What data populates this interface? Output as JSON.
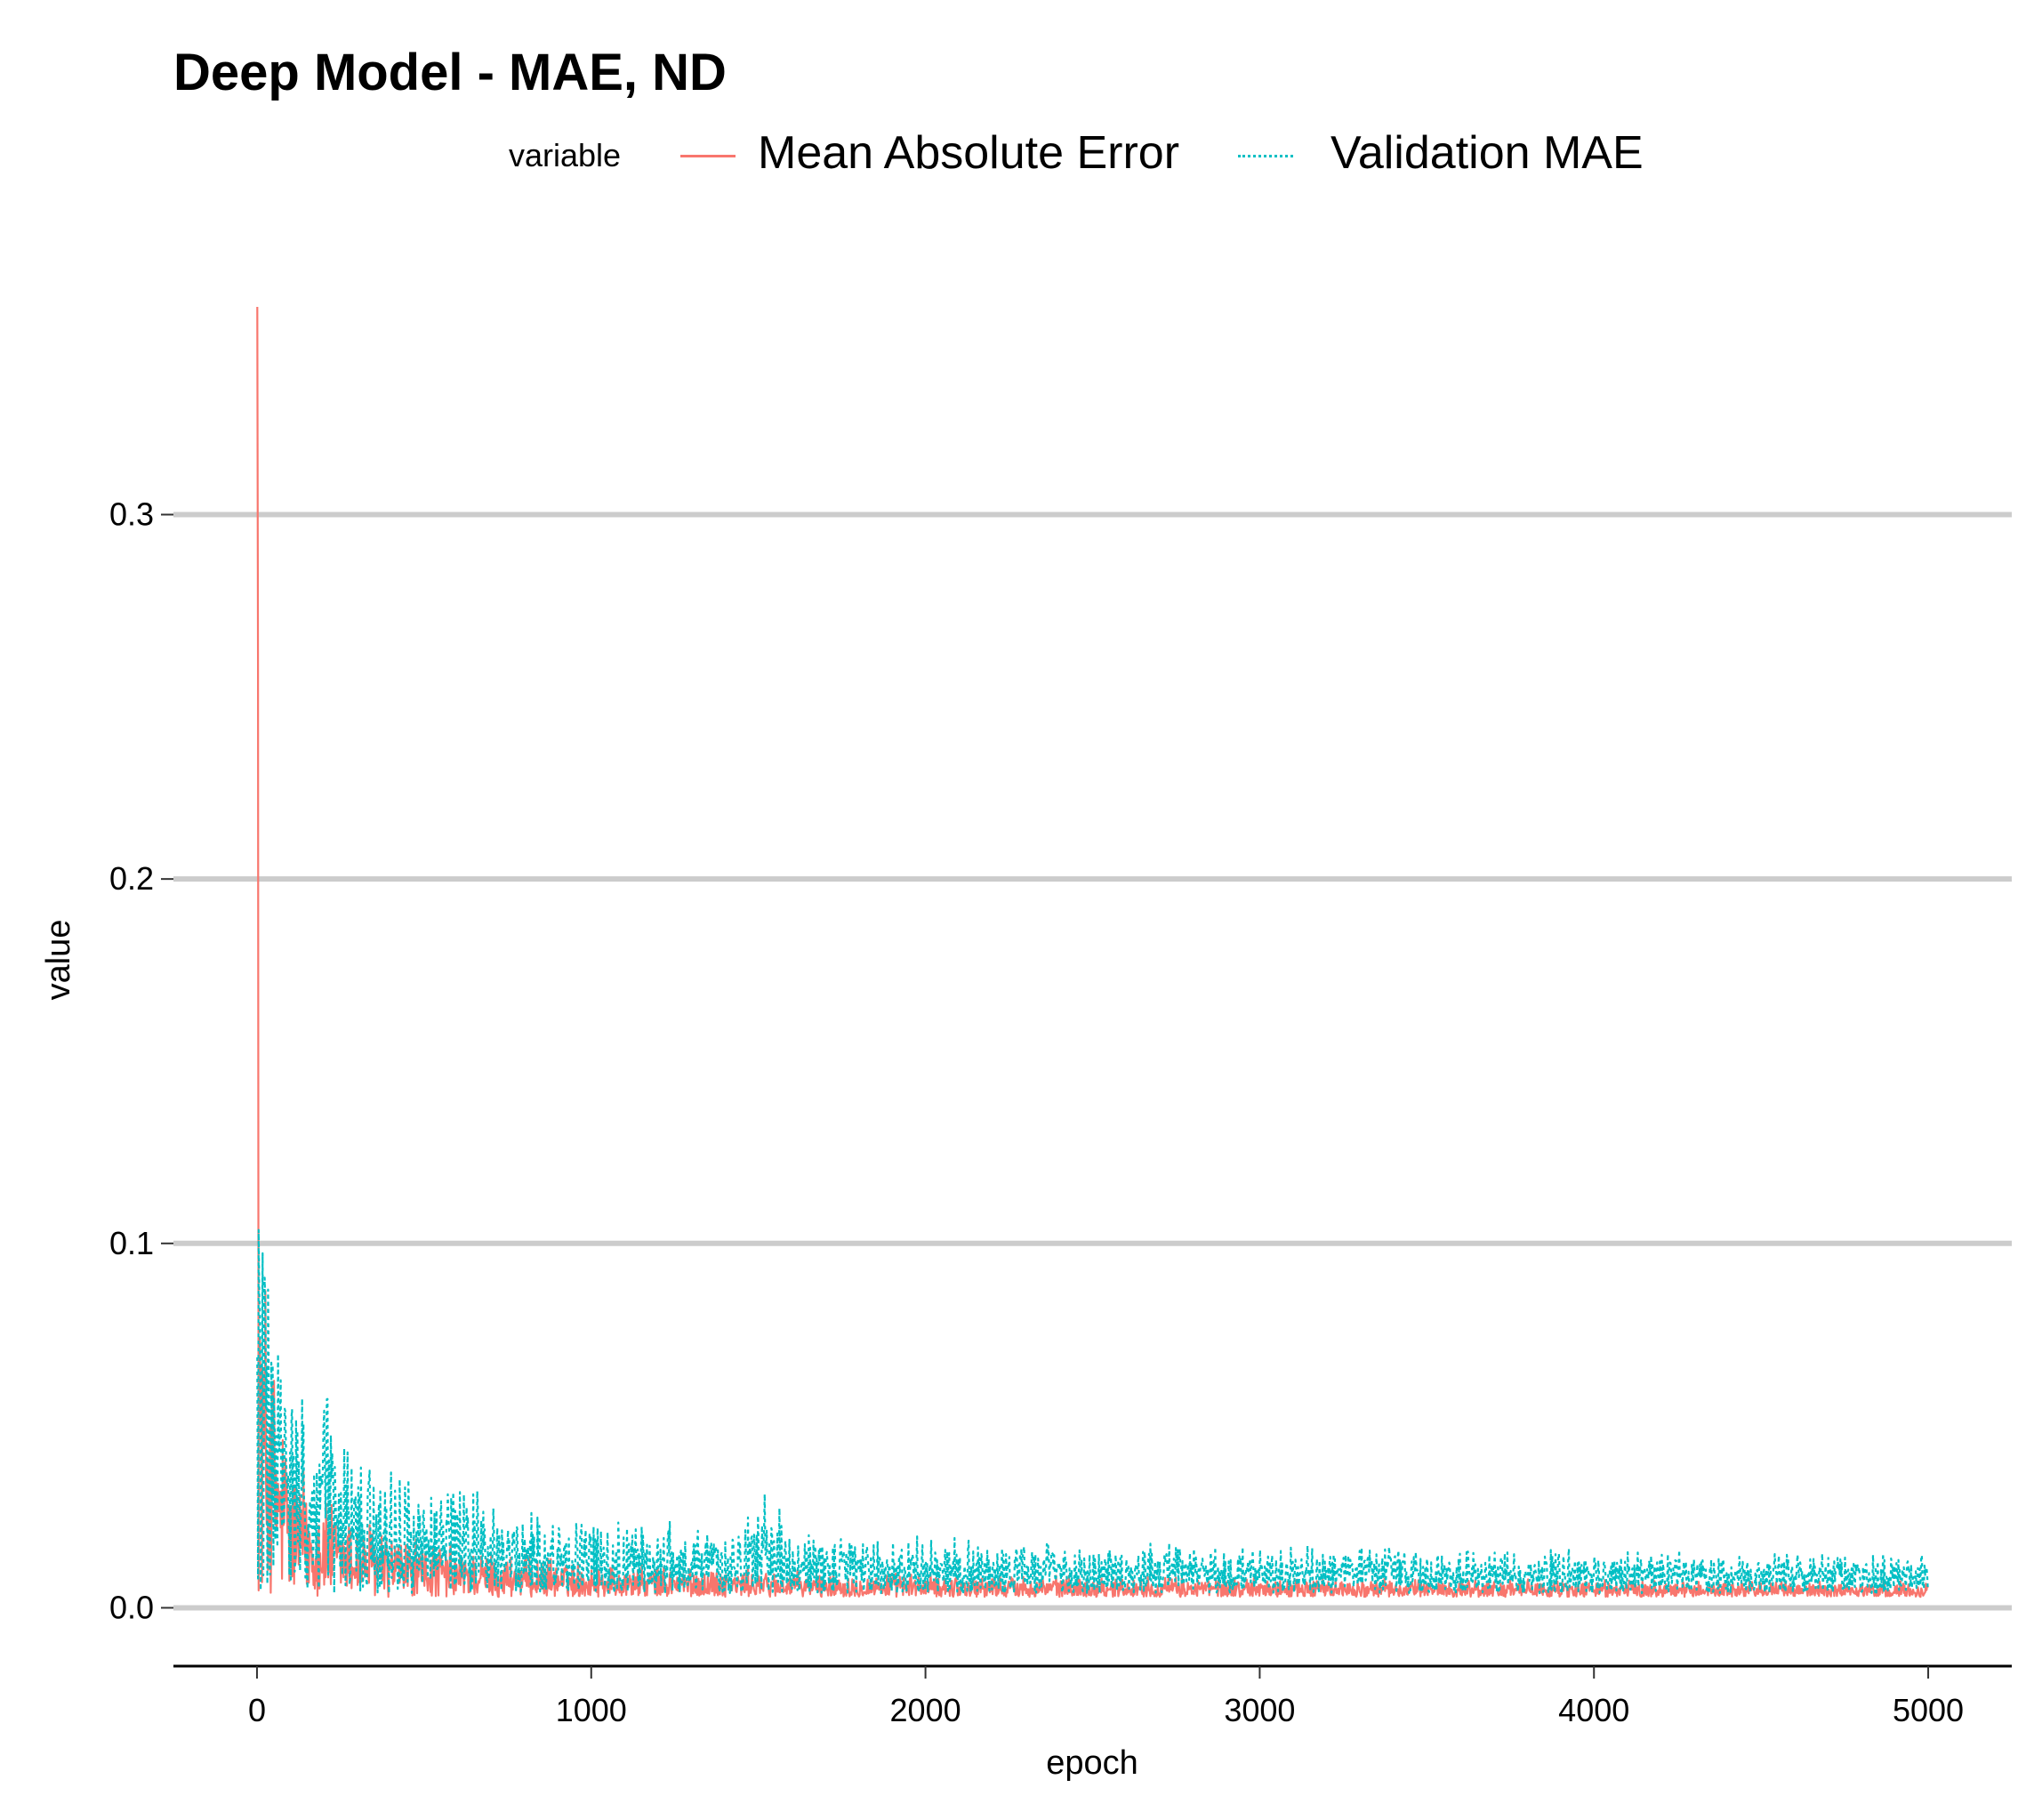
{
  "chart_data": {
    "type": "line",
    "title": "Deep Model - MAE, ND",
    "xlabel": "epoch",
    "ylabel": "value",
    "xlim": [
      -250,
      5250
    ],
    "ylim": [
      -0.016,
      0.357
    ],
    "x_ticks": [
      0,
      1000,
      2000,
      3000,
      4000,
      5000
    ],
    "y_ticks": [
      0.0,
      0.1,
      0.2,
      0.3
    ],
    "x_tick_labels": [
      "0",
      "1000",
      "2000",
      "3000",
      "4000",
      "5000"
    ],
    "y_tick_labels": [
      "0.0",
      "0.1",
      "0.2",
      "0.3"
    ],
    "grid": "horizontal major",
    "legend": {
      "title": "variable",
      "position": "top"
    },
    "series": [
      {
        "name": "Mean Absolute Error",
        "color": "#F8766D",
        "linetype": "solid",
        "x": [
          1,
          5,
          10,
          20,
          30,
          40,
          50,
          60,
          70,
          80,
          100,
          125,
          150,
          175,
          200,
          250,
          300,
          350,
          400,
          450,
          500,
          600,
          700,
          800,
          900,
          1000,
          1200,
          1400,
          1550,
          1600,
          1800,
          2000,
          2200,
          2400,
          2600,
          2800,
          3000,
          3200,
          3400,
          3600,
          3800,
          4000,
          4200,
          4400,
          4600,
          4800,
          5000
        ],
        "values": [
          0.357,
          0.16,
          0.125,
          0.11,
          0.095,
          0.085,
          0.075,
          0.068,
          0.062,
          0.058,
          0.05,
          0.045,
          0.04,
          0.037,
          0.034,
          0.03,
          0.027,
          0.025,
          0.023,
          0.021,
          0.02,
          0.018,
          0.016,
          0.015,
          0.014,
          0.013,
          0.012,
          0.0115,
          0.011,
          0.0105,
          0.0102,
          0.0098,
          0.0095,
          0.0092,
          0.009,
          0.0088,
          0.0086,
          0.0084,
          0.0083,
          0.0082,
          0.0081,
          0.008,
          0.0079,
          0.0078,
          0.0077,
          0.0076,
          0.0075
        ],
        "noise_floor": 0.003
      },
      {
        "name": "Validation MAE",
        "color": "#00BFC4",
        "linetype": "dotted",
        "x": [
          1,
          5,
          10,
          20,
          30,
          40,
          50,
          60,
          70,
          80,
          100,
          125,
          150,
          175,
          200,
          250,
          300,
          350,
          400,
          450,
          500,
          600,
          700,
          800,
          900,
          1000,
          1200,
          1400,
          1550,
          1600,
          1800,
          2000,
          2200,
          2400,
          2600,
          2800,
          3000,
          3200,
          3400,
          3600,
          3800,
          4000,
          4200,
          4400,
          4600,
          4800,
          5000
        ],
        "values": [
          0.155,
          0.163,
          0.13,
          0.118,
          0.11,
          0.1,
          0.092,
          0.088,
          0.084,
          0.08,
          0.07,
          0.062,
          0.058,
          0.054,
          0.076,
          0.047,
          0.045,
          0.043,
          0.042,
          0.04,
          0.037,
          0.035,
          0.031,
          0.029,
          0.027,
          0.026,
          0.025,
          0.023,
          0.034,
          0.022,
          0.021,
          0.02,
          0.0195,
          0.019,
          0.0188,
          0.0185,
          0.018,
          0.0178,
          0.0175,
          0.0172,
          0.017,
          0.0168,
          0.0165,
          0.0162,
          0.016,
          0.0158,
          0.0155
        ],
        "noise_floor": 0.004
      }
    ]
  }
}
